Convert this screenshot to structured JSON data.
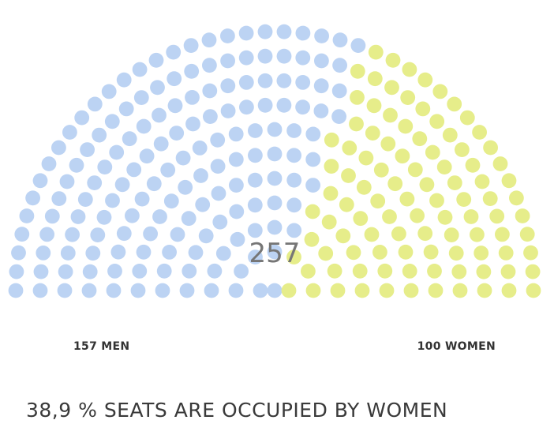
{
  "chart_data": {
    "type": "parliament",
    "total_seats": 257,
    "total_label": "257",
    "series": [
      {
        "name": "157 MEN",
        "label": "157 MEN",
        "value": 157,
        "color": "#bcd3f3"
      },
      {
        "name": "100 WOMEN",
        "label": "100 WOMEN",
        "value": 100,
        "color": "#e6ed8a"
      }
    ],
    "caption": "38,9 % SEATS ARE OCCUPIED BY WOMEN",
    "colors": {
      "men": "#bcd3f3",
      "women": "#e6ed8a",
      "total_text": "#767676",
      "label_text": "#333333",
      "caption_text": "#3a3a3a"
    }
  }
}
